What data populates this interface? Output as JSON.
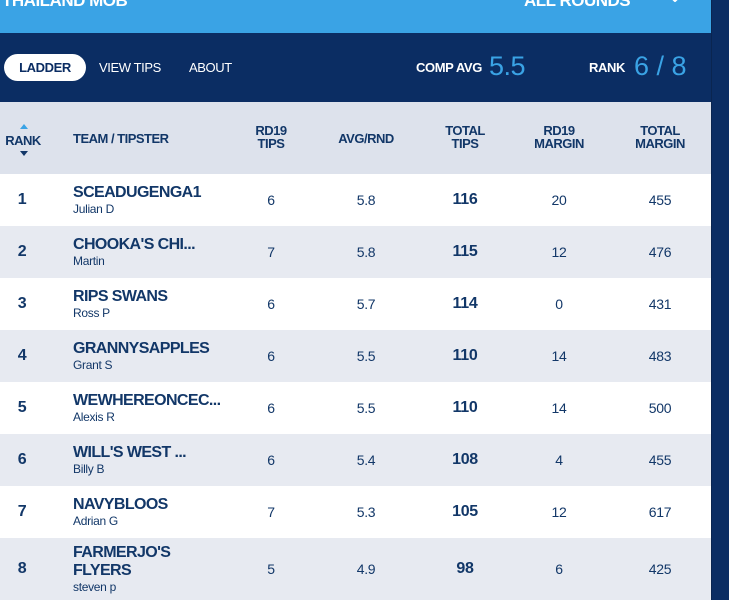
{
  "header": {
    "competition_name": "THAILAND MOB",
    "round_selector": "ALL ROUNDS",
    "round_selector_icon": "chevron-down-icon"
  },
  "nav": {
    "tabs": [
      {
        "label": "LADDER"
      },
      {
        "label": "VIEW TIPS"
      },
      {
        "label": "ABOUT"
      }
    ],
    "comp_avg_label": "COMP AVG",
    "comp_avg_value": "5.5",
    "rank_label": "RANK",
    "rank_value": "6 / 8"
  },
  "table": {
    "columns": {
      "rank": "RANK",
      "team": "TEAM / TIPSTER",
      "rd19_tips": [
        "RD19",
        "TIPS"
      ],
      "avg": "AVG/RND",
      "total_tips": [
        "TOTAL",
        "TIPS"
      ],
      "rd19_margin": [
        "RD19",
        "MARGIN"
      ],
      "total_margin": [
        "TOTAL",
        "MARGIN"
      ]
    },
    "rows": [
      {
        "rank": "1",
        "team": "SCEADUGENGA1",
        "tipster": "Julian D",
        "rd19_tips": "6",
        "avg": "5.8",
        "total_tips": "116",
        "rd19_margin": "20",
        "total_margin": "455"
      },
      {
        "rank": "2",
        "team": "CHOOKA'S CHI...",
        "tipster": "Martin",
        "rd19_tips": "7",
        "avg": "5.8",
        "total_tips": "115",
        "rd19_margin": "12",
        "total_margin": "476"
      },
      {
        "rank": "3",
        "team": "RIPS SWANS",
        "tipster": "Ross P",
        "rd19_tips": "6",
        "avg": "5.7",
        "total_tips": "114",
        "rd19_margin": "0",
        "total_margin": "431"
      },
      {
        "rank": "4",
        "team": "GRANNYSAPPLES",
        "tipster": "Grant S",
        "rd19_tips": "6",
        "avg": "5.5",
        "total_tips": "110",
        "rd19_margin": "14",
        "total_margin": "483"
      },
      {
        "rank": "5",
        "team": "WEWHEREONCEC...",
        "tipster": "Alexis R",
        "rd19_tips": "6",
        "avg": "5.5",
        "total_tips": "110",
        "rd19_margin": "14",
        "total_margin": "500"
      },
      {
        "rank": "6",
        "team": "WILL'S WEST ...",
        "tipster": "Billy B",
        "rd19_tips": "6",
        "avg": "5.4",
        "total_tips": "108",
        "rd19_margin": "4",
        "total_margin": "455"
      },
      {
        "rank": "7",
        "team": "NAVYBLOOS",
        "tipster": "Adrian G",
        "rd19_tips": "7",
        "avg": "5.3",
        "total_tips": "105",
        "rd19_margin": "12",
        "total_margin": "617"
      },
      {
        "rank": "8",
        "team": "FARMERJO'S FLYERS",
        "tipster": "steven p",
        "rd19_tips": "5",
        "avg": "4.9",
        "total_tips": "98",
        "rd19_margin": "6",
        "total_margin": "425"
      }
    ]
  },
  "colors": {
    "accent": "#3aa3e5",
    "navy": "#0b2d63",
    "header_bg": "#dde2ec",
    "row_alt": "#e7eaf1"
  }
}
